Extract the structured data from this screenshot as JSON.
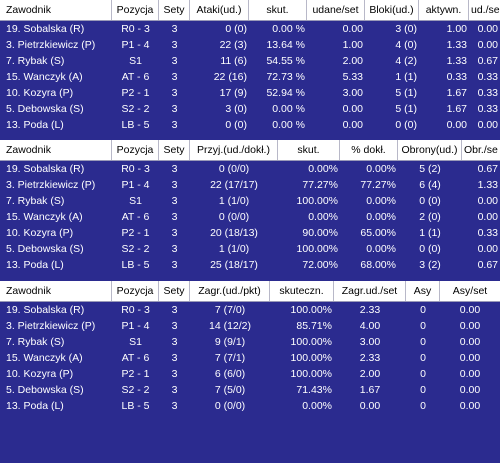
{
  "tables": [
    {
      "headers": [
        "Zawodnik",
        "Pozycja",
        "Sety",
        "Ataki(ud.)",
        "skut.",
        "udane/set",
        "Bloki(ud.)",
        "aktywn.",
        "ud./se"
      ],
      "rows": [
        [
          "19. Sobalska (R)",
          "R0 - 3",
          "3",
          "0 (0)",
          "0.00 %",
          "0.00",
          "3 (0)",
          "1.00",
          "0.00"
        ],
        [
          " 3. Pietrzkiewicz (P)",
          "P1 - 4",
          "3",
          "22 (3)",
          "13.64 %",
          "1.00",
          "4 (0)",
          "1.33",
          "0.00"
        ],
        [
          " 7. Rybak (S)",
          "S1",
          "3",
          "11 (6)",
          "54.55 %",
          "2.00",
          "4 (2)",
          "1.33",
          "0.67"
        ],
        [
          "15. Wanczyk (A)",
          "AT - 6",
          "3",
          "22 (16)",
          "72.73 %",
          "5.33",
          "1 (1)",
          "0.33",
          "0.33"
        ],
        [
          "10. Kozyra (P)",
          "P2 - 1",
          "3",
          "17 (9)",
          "52.94 %",
          "3.00",
          "5 (1)",
          "1.67",
          "0.33"
        ],
        [
          " 5. Debowska (S)",
          "S2 - 2",
          "3",
          "3 (0)",
          "0.00 %",
          "0.00",
          "5 (1)",
          "1.67",
          "0.33"
        ],
        [
          "13. Poda (L)",
          "LB - 5",
          "3",
          "0 (0)",
          "0.00 %",
          "0.00",
          "0 (0)",
          "0.00",
          "0.00"
        ]
      ]
    },
    {
      "headers": [
        "Zawodnik",
        "Pozycja",
        "Sety",
        "Przyj.(ud./dokł.)",
        "skut.",
        "% dokł.",
        "Obrony(ud.)",
        "Obr./se"
      ],
      "rows": [
        [
          "19. Sobalska (R)",
          "R0 - 3",
          "3",
          "0 (0/0)",
          "0.00%",
          "0.00%",
          "5 (2)",
          "0.67"
        ],
        [
          " 3. Pietrzkiewicz (P)",
          "P1 - 4",
          "3",
          "22 (17/17)",
          "77.27%",
          "77.27%",
          "6 (4)",
          "1.33"
        ],
        [
          " 7. Rybak (S)",
          "S1",
          "3",
          "1 (1/0)",
          "100.00%",
          "0.00%",
          "0 (0)",
          "0.00"
        ],
        [
          "15. Wanczyk (A)",
          "AT - 6",
          "3",
          "0 (0/0)",
          "0.00%",
          "0.00%",
          "2 (0)",
          "0.00"
        ],
        [
          "10. Kozyra (P)",
          "P2 - 1",
          "3",
          "20 (18/13)",
          "90.00%",
          "65.00%",
          "1 (1)",
          "0.33"
        ],
        [
          " 5. Debowska (S)",
          "S2 - 2",
          "3",
          "1 (1/0)",
          "100.00%",
          "0.00%",
          "0 (0)",
          "0.00"
        ],
        [
          "13. Poda (L)",
          "LB - 5",
          "3",
          "25 (18/17)",
          "72.00%",
          "68.00%",
          "3 (2)",
          "0.67"
        ]
      ]
    },
    {
      "headers": [
        "Zawodnik",
        "Pozycja",
        "Sety",
        "Zagr.(ud./pkt)",
        "skuteczn.",
        "Zagr.ud./set",
        "Asy",
        "Asy/set"
      ],
      "rows": [
        [
          "19. Sobalska (R)",
          "R0 - 3",
          "3",
          "7 (7/0)",
          "100.00%",
          "2.33",
          "0",
          "0.00"
        ],
        [
          " 3. Pietrzkiewicz (P)",
          "P1 - 4",
          "3",
          "14 (12/2)",
          "85.71%",
          "4.00",
          "0",
          "0.00"
        ],
        [
          " 7. Rybak (S)",
          "S1",
          "3",
          "9 (9/1)",
          "100.00%",
          "3.00",
          "0",
          "0.00"
        ],
        [
          "15. Wanczyk (A)",
          "AT - 6",
          "3",
          "7 (7/1)",
          "100.00%",
          "2.33",
          "0",
          "0.00"
        ],
        [
          "10. Kozyra (P)",
          "P2 - 1",
          "3",
          "6 (6/0)",
          "100.00%",
          "2.00",
          "0",
          "0.00"
        ],
        [
          " 5. Debowska (S)",
          "S2 - 2",
          "3",
          "7 (5/0)",
          "71.43%",
          "1.67",
          "0",
          "0.00"
        ],
        [
          "13. Poda (L)",
          "LB - 5",
          "3",
          "0 (0/0)",
          "0.00%",
          "0.00",
          "0",
          "0.00"
        ]
      ]
    }
  ]
}
